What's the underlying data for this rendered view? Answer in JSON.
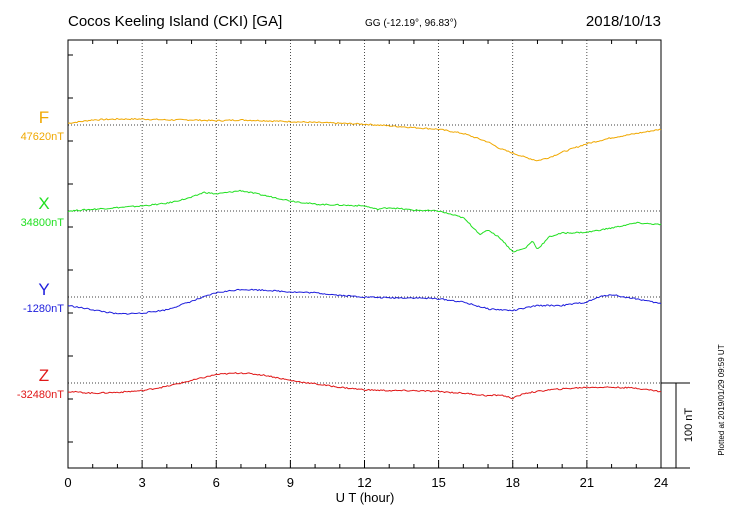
{
  "header": {
    "station": "Cocos Keeling Island (CKI)  [GA]",
    "coords": "GG (-12.19°,  96.83°)",
    "date": "2018/10/13"
  },
  "footer": {
    "plotted": "Plotted at 2019/01/29 09:59 UT"
  },
  "chart_data": {
    "type": "line",
    "title": "Cocos Keeling Island (CKI)  [GA]",
    "xlabel": "U T (hour)",
    "xlim": [
      0,
      24
    ],
    "xticks": [
      0,
      3,
      6,
      9,
      12,
      15,
      18,
      21,
      24
    ],
    "grid": true,
    "scale_bar": "100 nT",
    "scale_bar_nT": 100,
    "series": [
      {
        "name": "F",
        "baseline": "47620nT",
        "baseline_nT": 47620,
        "color": "#f0a800",
        "x": [
          0,
          1,
          2,
          3,
          4,
          5,
          6,
          7,
          8,
          9,
          10,
          11,
          12,
          13,
          14,
          15,
          16,
          17,
          17.5,
          18,
          18.5,
          19,
          19.5,
          20,
          21,
          22,
          23,
          24
        ],
        "y": [
          2,
          6,
          7,
          7,
          6,
          6,
          5,
          6,
          5,
          4,
          3,
          2,
          1,
          -1,
          -3,
          -5,
          -10,
          -20,
          -28,
          -33,
          -38,
          -42,
          -38,
          -32,
          -22,
          -15,
          -10,
          -5
        ]
      },
      {
        "name": "X",
        "baseline": "34800nT",
        "baseline_nT": 34800,
        "color": "#22e022",
        "x": [
          0,
          1,
          2,
          3,
          4,
          5,
          5.5,
          6,
          7,
          8,
          9,
          10,
          11,
          12,
          12.5,
          13,
          14,
          15,
          16,
          16.7,
          17,
          17.5,
          18,
          18.5,
          18.8,
          19,
          19.5,
          20,
          21,
          22,
          23,
          24
        ],
        "y": [
          0,
          2,
          4,
          6,
          9,
          16,
          22,
          20,
          24,
          18,
          12,
          8,
          7,
          6,
          2,
          4,
          1,
          0,
          -8,
          -28,
          -22,
          -32,
          -48,
          -44,
          -35,
          -45,
          -30,
          -26,
          -25,
          -20,
          -14,
          -16
        ]
      },
      {
        "name": "Y",
        "baseline": "-1280nT",
        "baseline_nT": -1280,
        "color": "#2020dd",
        "x": [
          0,
          1,
          2,
          3,
          4,
          5,
          6,
          7,
          8,
          9,
          10,
          11,
          12,
          13,
          14,
          15,
          16,
          17,
          18,
          19,
          20,
          21,
          21.5,
          22,
          22.5,
          23,
          24
        ],
        "y": [
          -10,
          -15,
          -20,
          -19,
          -15,
          -5,
          5,
          9,
          8,
          6,
          5,
          2,
          0,
          -1,
          -1,
          -2,
          -6,
          -14,
          -16,
          -10,
          -10,
          -6,
          0,
          3,
          0,
          -2,
          -8
        ]
      },
      {
        "name": "Z",
        "baseline": "-32480nT",
        "baseline_nT": -32480,
        "color": "#e01818",
        "x": [
          0,
          1,
          2,
          3,
          4,
          5,
          6,
          7,
          8,
          9,
          10,
          11,
          12,
          13,
          14,
          15,
          16,
          17,
          17.5,
          18,
          18.5,
          19,
          19.5,
          20,
          21,
          22,
          23,
          24
        ],
        "y": [
          -10,
          -12,
          -11,
          -9,
          -4,
          3,
          10,
          12,
          9,
          3,
          -1,
          -5,
          -8,
          -9,
          -9,
          -10,
          -12,
          -15,
          -14,
          -18,
          -12,
          -10,
          -8,
          -7,
          -5,
          -5,
          -6,
          -10
        ]
      }
    ]
  }
}
